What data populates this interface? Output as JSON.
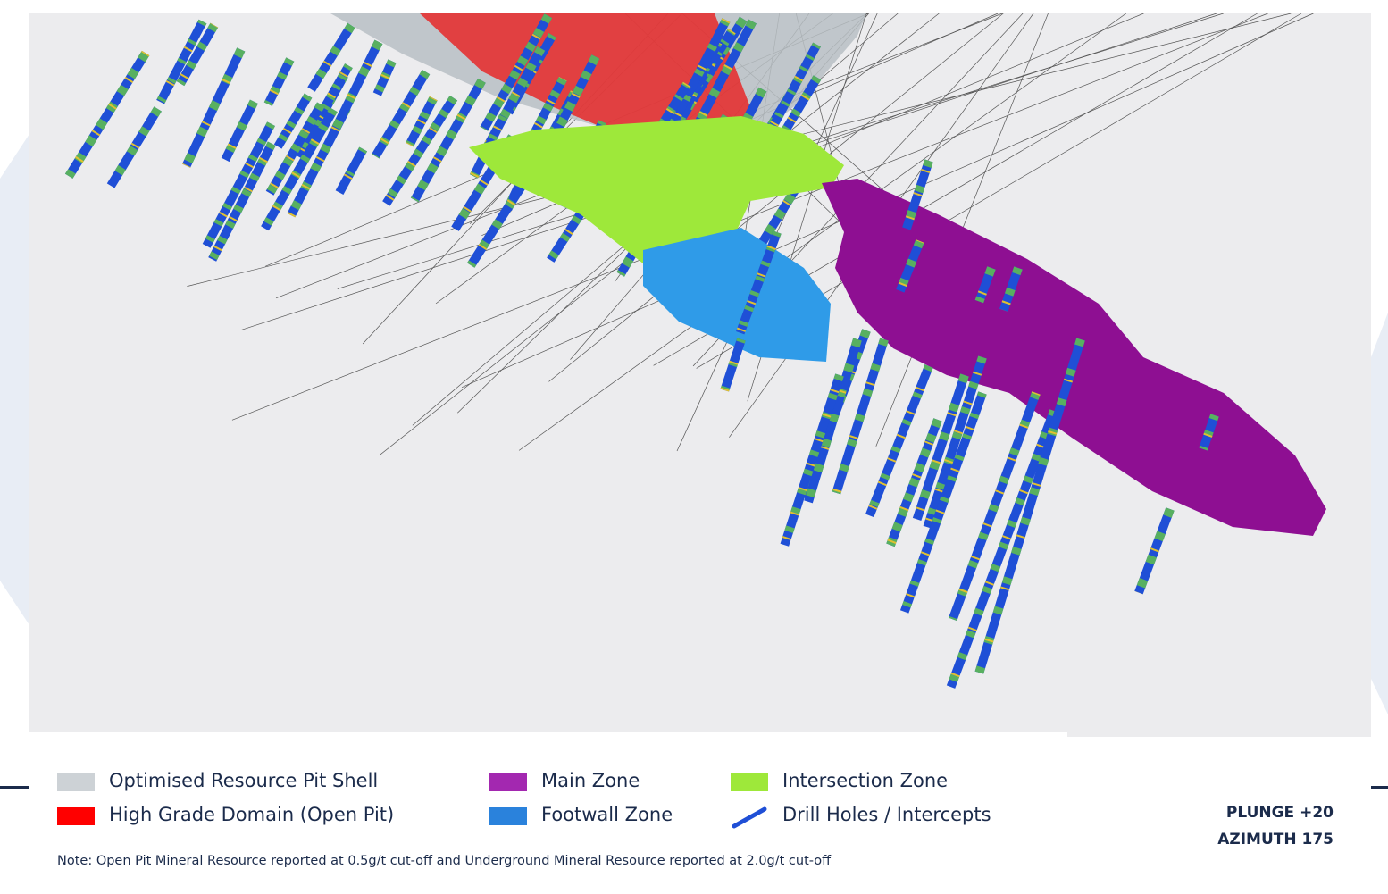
{
  "legend": [
    {
      "label": "Optimised Resource Pit Shell"
    },
    {
      "label": "High Grade Domain (Open Pit)"
    },
    {
      "label": "Main Zone"
    },
    {
      "label": "Footwall Zone"
    },
    {
      "label": "Intersection Zone"
    },
    {
      "label": "Drill Holes / Intercepts"
    }
  ],
  "note": "Note: Open Pit Mineral Resource reported at 0.5g/t cut-off and Underground Mineral Resource reported at 2.0g/t cut-off",
  "orientation": [
    "PLUNGE +20",
    "AZIMUTH 175"
  ]
}
